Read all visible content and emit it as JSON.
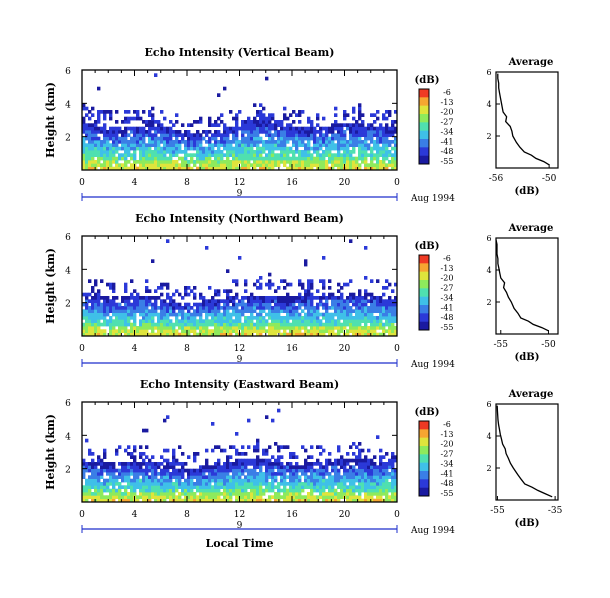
{
  "colors": {
    "background": "#ffffff",
    "axis": "#000000",
    "date_bar": "#1e2fcc",
    "colormap": [
      "#1a1aa0",
      "#2b39d8",
      "#3a7ee6",
      "#3fc0e8",
      "#4fe0b0",
      "#8eea5c",
      "#dfe43c",
      "#f6a631",
      "#ef3a24"
    ]
  },
  "common": {
    "ylabel": "Height (km)",
    "y_ticks": [
      "6",
      "4",
      "2"
    ],
    "x_ticks": [
      "0",
      "4",
      "8",
      "12",
      "16",
      "20",
      "0"
    ],
    "date_mid_label": "9",
    "date_label": "Aug 1994",
    "colorbar_unit": "(dB)",
    "colorbar_ticks": [
      "-6",
      "-13",
      "-20",
      "-27",
      "-34",
      "-41",
      "-48",
      "-55"
    ],
    "average_title": "Average",
    "average_xlabel": "(dB)",
    "xlabel": "Local Time"
  },
  "chart_data": [
    {
      "type": "heatmap",
      "title": "Echo Intensity (Vertical Beam)",
      "xlabel": "Local Time",
      "ylabel": "Height (km)",
      "xlim": [
        0,
        24
      ],
      "ylim": [
        0,
        6
      ],
      "colorbar": {
        "unit": "dB",
        "range": [
          -55,
          -6
        ],
        "ticks": [
          -6,
          -13,
          -20,
          -27,
          -34,
          -41,
          -48,
          -55
        ]
      },
      "echo_top_km": [
        3.0,
        2.6,
        2.5,
        2.4,
        2.5,
        2.7,
        2.6,
        2.3,
        2.0,
        2.1,
        2.2,
        2.5,
        2.7,
        2.9,
        2.9,
        2.8,
        2.6,
        2.5,
        2.5,
        2.6,
        2.7,
        2.7,
        2.6,
        2.5,
        2.5
      ],
      "average_profile": {
        "title": "Average",
        "xlabel": "(dB)",
        "x_ticks": [
          "-56",
          "-50"
        ],
        "xlim": [
          -56,
          -49
        ],
        "height_km": [
          0.2,
          0.4,
          0.6,
          0.8,
          1.0,
          1.3,
          1.6,
          2.0,
          2.3,
          2.6,
          2.9,
          3.2,
          3.5,
          3.8,
          4.1,
          4.4,
          4.7,
          5.0,
          5.3,
          5.6,
          5.9
        ],
        "db": [
          -50.0,
          -50.6,
          -51.5,
          -52.0,
          -52.8,
          -53.3,
          -53.7,
          -54.1,
          -54.2,
          -54.4,
          -54.9,
          -54.8,
          -55.2,
          -55.3,
          -55.4,
          -55.5,
          -55.6,
          -55.7,
          -55.7,
          -55.8,
          -55.8
        ]
      }
    },
    {
      "type": "heatmap",
      "title": "Echo Intensity (Northward Beam)",
      "xlabel": "Local Time",
      "ylabel": "Height (km)",
      "xlim": [
        0,
        24
      ],
      "ylim": [
        0,
        6
      ],
      "colorbar": {
        "unit": "dB",
        "range": [
          -55,
          -6
        ],
        "ticks": [
          -6,
          -13,
          -20,
          -27,
          -34,
          -41,
          -48,
          -55
        ]
      },
      "echo_top_km": [
        2.5,
        2.3,
        2.2,
        2.2,
        2.4,
        2.3,
        2.1,
        2.0,
        1.9,
        2.0,
        2.1,
        2.2,
        2.3,
        2.4,
        2.4,
        2.3,
        2.2,
        2.3,
        2.3,
        2.4,
        2.4,
        2.5,
        2.4,
        2.4,
        2.3
      ],
      "average_profile": {
        "title": "Average",
        "xlabel": "(dB)",
        "x_ticks": [
          "-55",
          "-50"
        ],
        "xlim": [
          -55.5,
          -49
        ],
        "height_km": [
          0.2,
          0.4,
          0.6,
          0.8,
          1.0,
          1.3,
          1.6,
          2.0,
          2.3,
          2.6,
          2.9,
          3.2,
          3.5,
          3.8,
          4.1,
          4.4,
          4.7,
          5.0,
          5.3,
          5.6,
          5.9
        ],
        "db": [
          -50.0,
          -50.7,
          -51.6,
          -52.1,
          -52.9,
          -53.2,
          -53.6,
          -53.9,
          -54.2,
          -54.4,
          -54.7,
          -54.6,
          -55.0,
          -55.1,
          -55.2,
          -55.3,
          -55.3,
          -55.4,
          -55.4,
          -55.4,
          -55.5
        ]
      }
    },
    {
      "type": "heatmap",
      "title": "Echo Intensity (Eastward Beam)",
      "xlabel": "Local Time",
      "ylabel": "Height (km)",
      "xlim": [
        0,
        24
      ],
      "ylim": [
        0,
        6
      ],
      "colorbar": {
        "unit": "dB",
        "range": [
          -55,
          -6
        ],
        "ticks": [
          -6,
          -13,
          -20,
          -27,
          -34,
          -41,
          -48,
          -55
        ]
      },
      "echo_top_km": [
        2.4,
        2.2,
        2.2,
        2.3,
        2.4,
        2.3,
        2.1,
        2.0,
        1.9,
        2.0,
        2.2,
        2.3,
        2.5,
        2.6,
        2.5,
        2.4,
        2.3,
        2.3,
        2.4,
        2.4,
        2.5,
        2.5,
        2.4,
        2.4,
        2.3
      ],
      "average_profile": {
        "title": "Average",
        "xlabel": "(dB)",
        "x_ticks": [
          "-55",
          "-35"
        ],
        "xlim": [
          -55.5,
          -34
        ],
        "height_km": [
          0.2,
          0.4,
          0.6,
          0.8,
          1.0,
          1.3,
          1.6,
          2.0,
          2.3,
          2.6,
          2.9,
          3.2,
          3.5,
          3.8,
          4.1,
          4.4,
          4.7,
          5.0,
          5.3,
          5.6,
          5.9
        ],
        "db": [
          -36.0,
          -38.5,
          -41.0,
          -43.0,
          -45.5,
          -46.8,
          -48.0,
          -49.5,
          -50.5,
          -51.2,
          -52.0,
          -52.3,
          -53.2,
          -53.6,
          -54.0,
          -54.3,
          -54.6,
          -54.8,
          -54.9,
          -55.0,
          -55.1
        ]
      }
    }
  ]
}
